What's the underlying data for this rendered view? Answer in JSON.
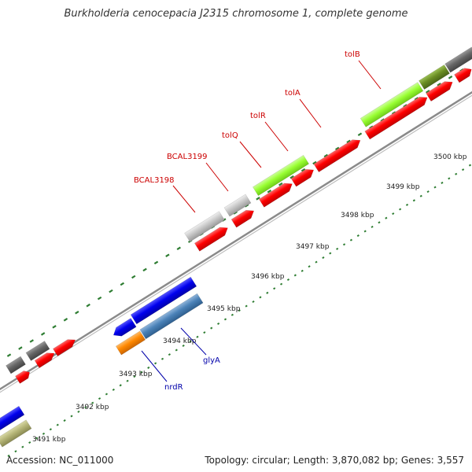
{
  "title": "Burkholderia cenocepacia J2315 chromosome 1, complete genome",
  "accession": "Accession: NC_011000",
  "topology": "Topology: circular; Length: 3,870,082 bp; Genes: 3,557",
  "colors": {
    "forward_cds": "#ff0000",
    "gene_blue": "#0000ee",
    "gene_steelblue": "#4b82b8",
    "gene_lime": "#99ff33",
    "gene_olive": "#6b8e23",
    "gene_gray": "#c8c8c8",
    "gene_darkgray": "#666666",
    "gene_orange": "#ff8800",
    "gene_khaki": "#b5b577",
    "tick_green": "#2e7d32",
    "backbone": "#888888",
    "label_red": "#cc0000",
    "label_blue": "#0000aa"
  },
  "kbp_labels": [
    {
      "pos": 3491,
      "text": "3491 kbp"
    },
    {
      "pos": 3492,
      "text": "3492 kbp"
    },
    {
      "pos": 3493,
      "text": "3493 kbp"
    },
    {
      "pos": 3494,
      "text": "3494 kbp"
    },
    {
      "pos": 3495,
      "text": "3495 kbp"
    },
    {
      "pos": 3496,
      "text": "3496 kbp"
    },
    {
      "pos": 3497,
      "text": "3497 kbp"
    },
    {
      "pos": 3498,
      "text": "3498 kbp"
    },
    {
      "pos": 3499,
      "text": "3499 kbp"
    },
    {
      "pos": 3500,
      "text": "3500 kbp"
    }
  ],
  "gene_labels": [
    {
      "text": "BCAL3198",
      "color": "label_red"
    },
    {
      "text": "BCAL3199",
      "color": "label_red"
    },
    {
      "text": "tolQ",
      "color": "label_red"
    },
    {
      "text": "tolR",
      "color": "label_red"
    },
    {
      "text": "tolA",
      "color": "label_red"
    },
    {
      "text": "tolB",
      "color": "label_red"
    },
    {
      "text": "glyA",
      "color": "label_blue"
    },
    {
      "text": "nrdR",
      "color": "label_blue"
    }
  ]
}
